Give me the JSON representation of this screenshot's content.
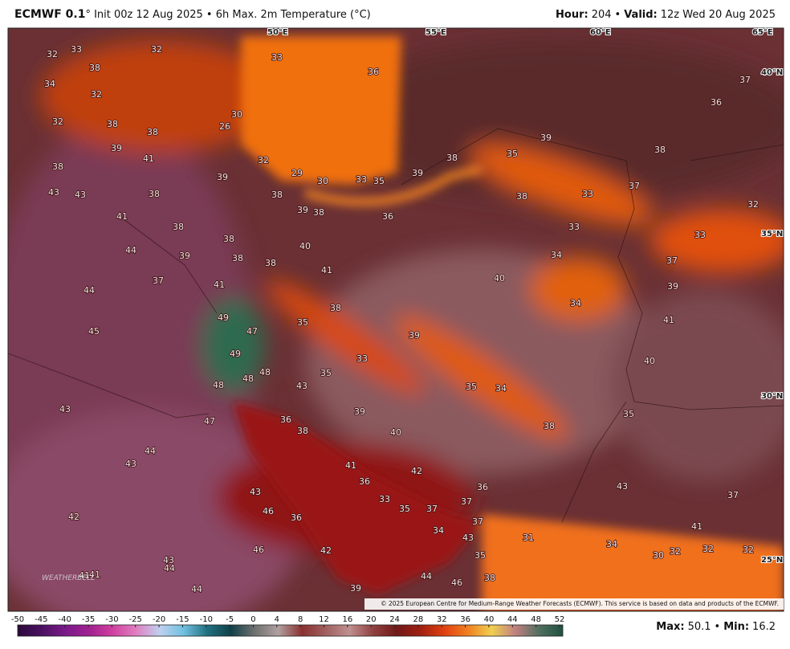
{
  "header": {
    "model": "ECMWF 0.1",
    "subtitle": "° Init 00z 12 Aug 2025 • 6h Max. 2m Temperature (°C)",
    "hour_label": "Hour:",
    "hour": "204",
    "separator": "•",
    "valid_label": "Valid:",
    "valid": "12z Wed 20 Aug 2025"
  },
  "map": {
    "graticule": [
      "50°E",
      "55°E",
      "60°E",
      "65°E",
      "40°N",
      "35°N",
      "30°N",
      "25°N"
    ],
    "labels": [
      32,
      33,
      32,
      33,
      38,
      34,
      36,
      37,
      32,
      36,
      30,
      32,
      38,
      38,
      26,
      39,
      39,
      41,
      38,
      35,
      38,
      32,
      38,
      39,
      29,
      30,
      33,
      35,
      39,
      37,
      43,
      43,
      38,
      38,
      38,
      33,
      32,
      39,
      38,
      36,
      41,
      38,
      33,
      33,
      38,
      44,
      40,
      34,
      39,
      38,
      38,
      37,
      41,
      40,
      37,
      41,
      39,
      44,
      38,
      34,
      49,
      41,
      35,
      45,
      47,
      39,
      49,
      33,
      40,
      48,
      35,
      48,
      48,
      43,
      35,
      34,
      43,
      39,
      35,
      36,
      47,
      38,
      38,
      40,
      44,
      43,
      41,
      42,
      36,
      36,
      43,
      43,
      37,
      33,
      35,
      37,
      37,
      46,
      36,
      37,
      34,
      41,
      31,
      43,
      46,
      42,
      34,
      30,
      32,
      32,
      32,
      35,
      43,
      44,
      41,
      41,
      44,
      46,
      38,
      39,
      44,
      42
    ],
    "copyright": "© 2025 European Centre for Medium-Range Weather Forecasts (ECMWF). This service is based on data and products of the ECMWF.",
    "logo": "WEATHERBELL"
  },
  "colorbar": {
    "ticks": [
      -50,
      -45,
      -40,
      -35,
      -30,
      -25,
      -20,
      -15,
      -10,
      -5,
      0,
      4,
      8,
      12,
      16,
      20,
      24,
      28,
      32,
      36,
      40,
      44,
      48,
      52
    ],
    "colors": [
      "#2a0a3a",
      "#4a1060",
      "#7a1a8a",
      "#a02090",
      "#d040a0",
      "#e080c0",
      "#c0d0f0",
      "#70c0e0",
      "#207080",
      "#104048",
      "#707070",
      "#b0a0a0",
      "#8a3030",
      "#a06060",
      "#c09090",
      "#904040",
      "#701818",
      "#a02010",
      "#e04010",
      "#f08020",
      "#f0d050",
      "#c08080",
      "#507060",
      "#205040"
    ]
  },
  "footer": {
    "max_label": "Max:",
    "max": "50.1",
    "separator": "•",
    "min_label": "Min:",
    "min": "16.2"
  }
}
